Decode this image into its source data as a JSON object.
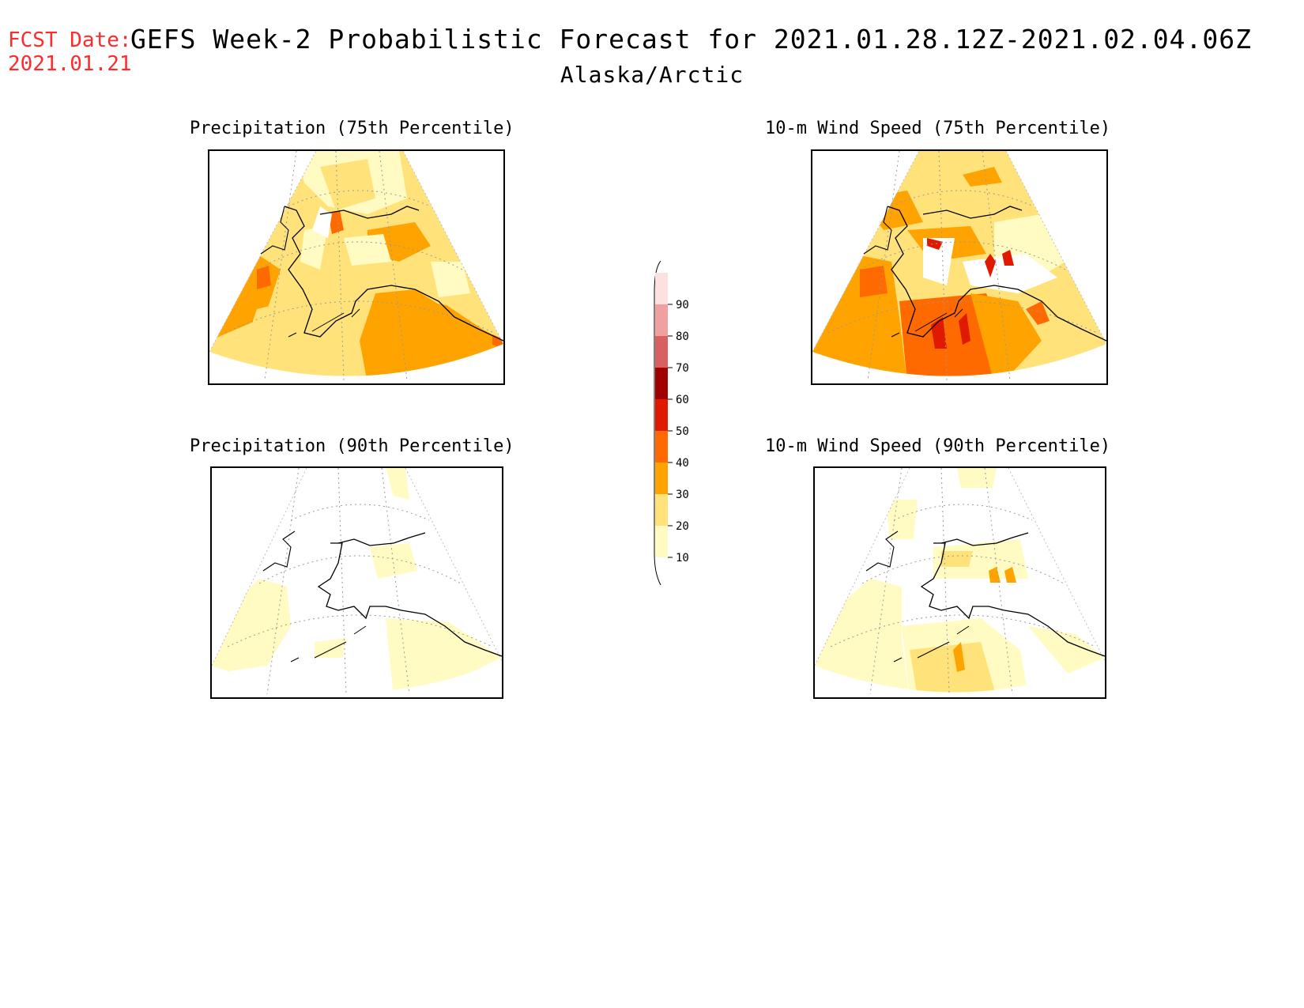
{
  "forecast_date": {
    "label": "FCST Date:",
    "value": "2021.01.21",
    "color": "#ff2a2a"
  },
  "title": "GEFS Week-2 Probabilistic Forecast for 2021.01.28.12Z-2021.02.04.06Z",
  "subtitle": "Alaska/Arctic",
  "panels": {
    "precip_75": {
      "title": "Precipitation (75th Percentile)"
    },
    "wind_75": {
      "title": "10-m Wind Speed (75th Percentile)"
    },
    "precip_90": {
      "title": "Precipitation (90th Percentile)"
    },
    "wind_90": {
      "title": "10-m Wind Speed (90th Percentile)"
    }
  },
  "colorbar": {
    "levels": [
      "10",
      "20",
      "30",
      "40",
      "50",
      "60",
      "70",
      "80",
      "90"
    ],
    "colors": [
      "#fffbc2",
      "#ffe37a",
      "#ffa300",
      "#ff6a00",
      "#e01a00",
      "#a00000",
      "#d96060",
      "#f0a0a0",
      "#fde0e0"
    ]
  }
}
